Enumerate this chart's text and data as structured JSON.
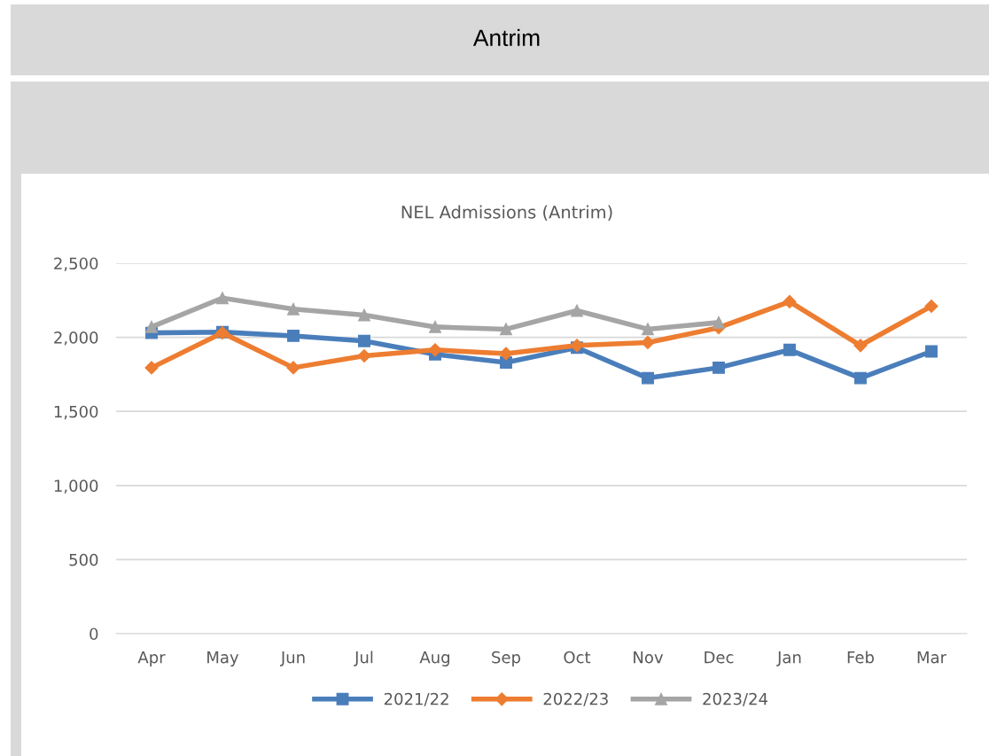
{
  "chart_data": {
    "type": "line",
    "title": "Antrim",
    "subtitle": "NEL Admissions (Antrim)",
    "categories": [
      "Apr",
      "May",
      "Jun",
      "Jul",
      "Aug",
      "Sep",
      "Oct",
      "Nov",
      "Dec",
      "Jan",
      "Feb",
      "Mar"
    ],
    "series": [
      {
        "name": "2021/22",
        "color": "#4a7ebb",
        "marker": "square",
        "values": [
          2030,
          2035,
          2010,
          1975,
          1885,
          1830,
          1930,
          1725,
          1795,
          1915,
          1725,
          1905
        ]
      },
      {
        "name": "2022/23",
        "color": "#ed7d31",
        "marker": "diamond",
        "values": [
          1795,
          2030,
          1795,
          1875,
          1915,
          1890,
          1945,
          1965,
          2065,
          2240,
          1945,
          2210
        ]
      },
      {
        "name": "2023/24",
        "color": "#a5a5a5",
        "marker": "triangle",
        "values": [
          2070,
          2265,
          2190,
          2150,
          2070,
          2055,
          2180,
          2055,
          2100,
          null,
          null,
          null
        ]
      }
    ],
    "ylim": [
      0,
      2500
    ],
    "yticks": [
      {
        "value": 0,
        "label": "0"
      },
      {
        "value": 500,
        "label": "500"
      },
      {
        "value": 1000,
        "label": "1,000"
      },
      {
        "value": 1500,
        "label": "1,500"
      },
      {
        "value": 2000,
        "label": "2,000"
      },
      {
        "value": 2500,
        "label": "2,500"
      }
    ],
    "grid": "y",
    "legend": "bottom",
    "line_style": "solid"
  }
}
